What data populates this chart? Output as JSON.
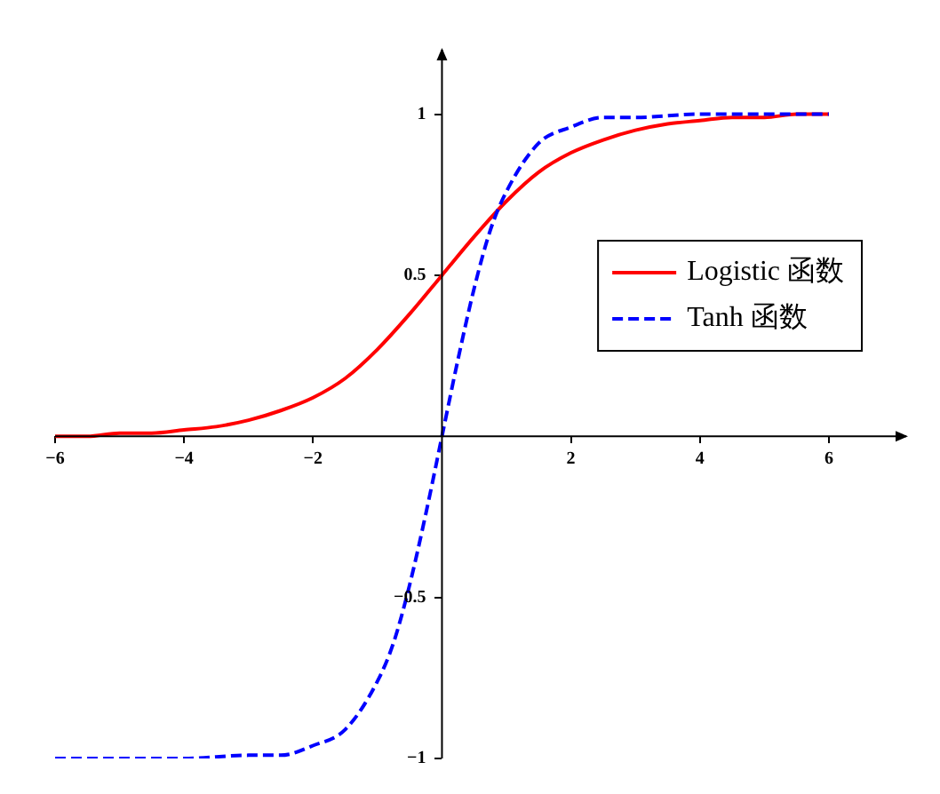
{
  "chart_data": {
    "type": "line",
    "xlim": [
      -6,
      7.2
    ],
    "ylim": [
      -1,
      1.2
    ],
    "xticks": [
      {
        "value": -6,
        "label": "−6"
      },
      {
        "value": -4,
        "label": "−4"
      },
      {
        "value": -2,
        "label": "−2"
      },
      2,
      4,
      6
    ],
    "yticks": [
      {
        "value": -1,
        "label": "−1"
      },
      {
        "value": -0.5,
        "label": "−0.5"
      },
      0.5,
      1
    ],
    "grid": false,
    "legend": "right",
    "marker": "none",
    "series": [
      {
        "name": "Logistic 函数",
        "color": "#ff0000",
        "line_style": "solid",
        "x": [
          -6,
          -5.5,
          -5,
          -4.5,
          -4,
          -3.5,
          -3,
          -2.5,
          -2,
          -1.5,
          -1,
          -0.5,
          0,
          0.5,
          1,
          1.5,
          2,
          2.5,
          3,
          3.5,
          4,
          4.5,
          5,
          5.5,
          6
        ],
        "values": [
          0,
          0,
          0.01,
          0.01,
          0.02,
          0.03,
          0.05,
          0.08,
          0.12,
          0.18,
          0.27,
          0.38,
          0.5,
          0.62,
          0.73,
          0.82,
          0.88,
          0.92,
          0.95,
          0.97,
          0.98,
          0.99,
          0.99,
          1,
          1
        ]
      },
      {
        "name": "Tanh 函数",
        "color": "#0000ff",
        "line_style": "dashed",
        "x": [
          -6,
          -4,
          -3,
          -2.5,
          -2,
          -1.5,
          -1,
          -0.75,
          -0.5,
          -0.25,
          0,
          0.25,
          0.5,
          0.75,
          1,
          1.5,
          2,
          2.5,
          3,
          4,
          6
        ],
        "values": [
          -1,
          -1,
          -0.99,
          -0.99,
          -0.96,
          -0.91,
          -0.76,
          -0.64,
          -0.46,
          -0.24,
          0,
          0.24,
          0.46,
          0.64,
          0.76,
          0.91,
          0.96,
          0.99,
          0.99,
          1,
          1
        ]
      }
    ]
  }
}
